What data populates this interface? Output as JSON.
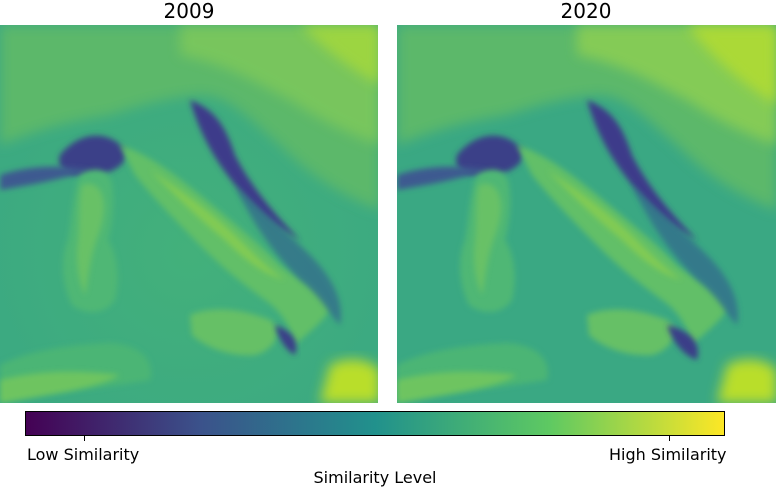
{
  "panels": [
    {
      "title": "2009"
    },
    {
      "title": "2020"
    }
  ],
  "colorbar": {
    "colormap": "viridis",
    "colors": [
      "#440154",
      "#3b528b",
      "#21918c",
      "#5ec962",
      "#fde725"
    ],
    "low_label": "Low Similarity",
    "high_label": "High Similarity",
    "label": "Similarity Level"
  }
}
